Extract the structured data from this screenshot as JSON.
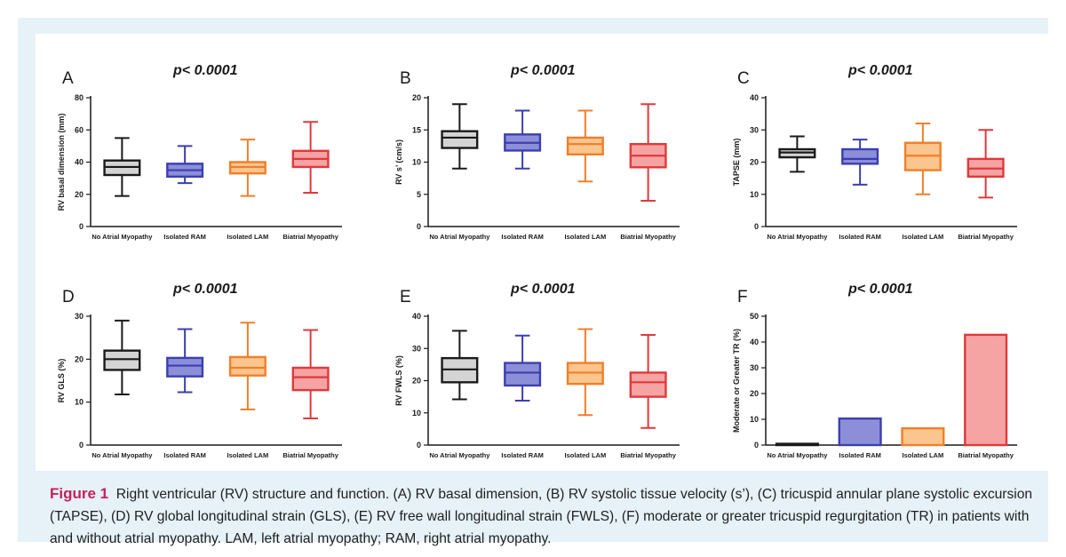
{
  "caption": {
    "label": "Figure 1",
    "text": "Right ventricular (RV) structure and function. (A) RV basal dimension, (B) RV systolic tissue velocity (s’), (C) tricuspid annular plane systolic excursion (TAPSE), (D) RV global longitudinal strain (GLS), (E) RV free wall longitudinal strain (FWLS), (F) moderate or greater tricuspid regurgitation (TR) in patients with and without atrial myopathy. LAM, left atrial myopathy; RAM, right atrial myopathy."
  },
  "colors": {
    "series_stroke": [
      "#1a1a1a",
      "#3b3fb0",
      "#f07f2a",
      "#e0393b"
    ],
    "series_fill": [
      "#d4d4d4",
      "#8c8fd8",
      "#fbc58e",
      "#f5a3a3"
    ]
  },
  "chart_data": [
    {
      "panel": "A",
      "type": "box",
      "pvalue": "p< 0.0001",
      "ylabel": "RV basal dimension (mm)",
      "ylim": [
        0,
        80
      ],
      "yticks": [
        0,
        20,
        40,
        60,
        80
      ],
      "categories": [
        "No Atrial Myopathy",
        "Isolated RAM",
        "Isolated LAM",
        "Biatrial Myopathy"
      ],
      "boxes": [
        {
          "min": 19,
          "q1": 32,
          "median": 37,
          "q3": 41,
          "max": 55
        },
        {
          "min": 27,
          "q1": 31,
          "median": 35,
          "q3": 39,
          "max": 50
        },
        {
          "min": 19,
          "q1": 33,
          "median": 37,
          "q3": 40,
          "max": 54
        },
        {
          "min": 21,
          "q1": 37,
          "median": 42,
          "q3": 47,
          "max": 65
        }
      ]
    },
    {
      "panel": "B",
      "type": "box",
      "pvalue": "p< 0.0001",
      "ylabel": "RV s’ (cm/s)",
      "ylim": [
        0,
        20
      ],
      "yticks": [
        0,
        5,
        10,
        15,
        20
      ],
      "categories": [
        "No Atrial Myopathy",
        "Isolated RAM",
        "Isolated LAM",
        "Biatrial Myopathy"
      ],
      "boxes": [
        {
          "min": 9,
          "q1": 12.2,
          "median": 13.8,
          "q3": 14.8,
          "max": 19
        },
        {
          "min": 9,
          "q1": 11.8,
          "median": 13,
          "q3": 14.3,
          "max": 18
        },
        {
          "min": 7,
          "q1": 11.2,
          "median": 12.8,
          "q3": 13.8,
          "max": 18
        },
        {
          "min": 4,
          "q1": 9.2,
          "median": 11,
          "q3": 12.8,
          "max": 19
        }
      ]
    },
    {
      "panel": "C",
      "type": "box",
      "pvalue": "p< 0.0001",
      "ylabel": "TAPSE (mm)",
      "ylim": [
        0,
        40
      ],
      "yticks": [
        0,
        10,
        20,
        30,
        40
      ],
      "categories": [
        "No Atrial Myopathy",
        "Isolated RAM",
        "Isolated LAM",
        "Biatrial Myopathy"
      ],
      "boxes": [
        {
          "min": 17,
          "q1": 21.5,
          "median": 23,
          "q3": 24,
          "max": 28
        },
        {
          "min": 13,
          "q1": 19.5,
          "median": 21,
          "q3": 24,
          "max": 27
        },
        {
          "min": 10,
          "q1": 17.5,
          "median": 22,
          "q3": 26,
          "max": 32
        },
        {
          "min": 9,
          "q1": 15.5,
          "median": 18,
          "q3": 21,
          "max": 30
        }
      ]
    },
    {
      "panel": "D",
      "type": "box",
      "pvalue": "p< 0.0001",
      "ylabel": "RV GLS (%)",
      "ylim": [
        0,
        30
      ],
      "yticks": [
        0,
        10,
        20,
        30
      ],
      "categories": [
        "No Atrial Myopathy",
        "Isolated RAM",
        "Isolated LAM",
        "Biatrial Myopathy"
      ],
      "boxes": [
        {
          "min": 11.8,
          "q1": 17.5,
          "median": 20,
          "q3": 22,
          "max": 29
        },
        {
          "min": 12.3,
          "q1": 16,
          "median": 18.5,
          "q3": 20.3,
          "max": 27
        },
        {
          "min": 8.3,
          "q1": 16.2,
          "median": 18,
          "q3": 20.5,
          "max": 28.5
        },
        {
          "min": 6.2,
          "q1": 12.8,
          "median": 15.8,
          "q3": 18,
          "max": 26.8
        }
      ]
    },
    {
      "panel": "E",
      "type": "box",
      "pvalue": "p< 0.0001",
      "ylabel": "RV FWLS (%)",
      "ylim": [
        0,
        40
      ],
      "yticks": [
        0,
        10,
        20,
        30,
        40
      ],
      "categories": [
        "No Atrial Myopathy",
        "Isolated RAM",
        "Isolated LAM",
        "Biatrial Myopathy"
      ],
      "boxes": [
        {
          "min": 14.2,
          "q1": 19.5,
          "median": 23.5,
          "q3": 27,
          "max": 35.5
        },
        {
          "min": 13.8,
          "q1": 18.5,
          "median": 22.5,
          "q3": 25.5,
          "max": 34
        },
        {
          "min": 9.3,
          "q1": 19,
          "median": 22.5,
          "q3": 25.5,
          "max": 36
        },
        {
          "min": 5.3,
          "q1": 15,
          "median": 19.5,
          "q3": 22.5,
          "max": 34.2
        }
      ]
    },
    {
      "panel": "F",
      "type": "bar",
      "pvalue": "p< 0.0001",
      "ylabel": "Moderate or Greater TR (%)",
      "ylim": [
        0,
        50
      ],
      "yticks": [
        0,
        10,
        20,
        30,
        40,
        50
      ],
      "categories": [
        "No Atrial Myopathy",
        "Isolated RAM",
        "Isolated LAM",
        "Biatrial Myopathy"
      ],
      "values": [
        0.5,
        10.3,
        6.5,
        42.8
      ]
    }
  ]
}
